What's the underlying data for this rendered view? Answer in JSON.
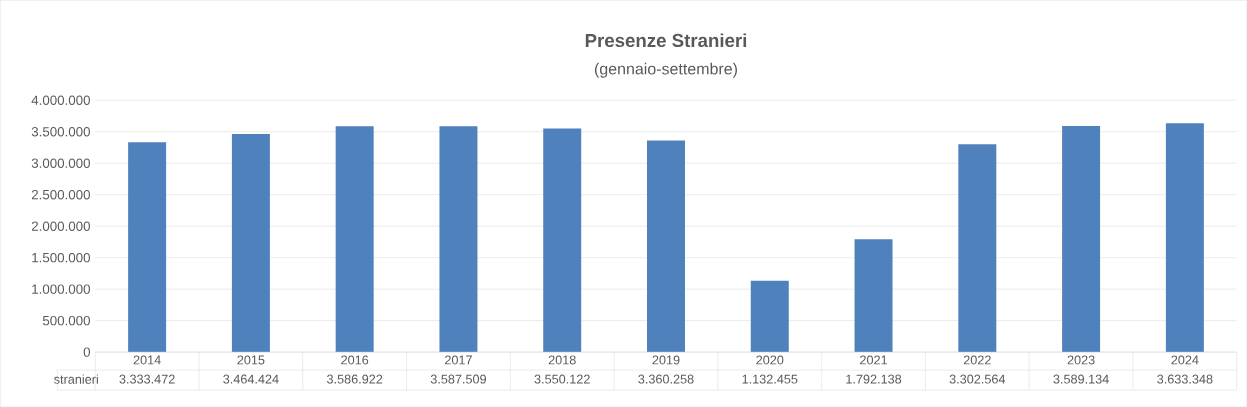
{
  "chart_data": {
    "type": "bar",
    "title": "Presenze Stranieri",
    "subtitle": "(gennaio-settembre)",
    "categories": [
      "2014",
      "2015",
      "2016",
      "2017",
      "2018",
      "2019",
      "2020",
      "2021",
      "2022",
      "2023",
      "2024"
    ],
    "series": [
      {
        "name": "stranieri",
        "color": "#4f81bd",
        "values": [
          3333472,
          3464424,
          3586922,
          3587509,
          3550122,
          3360258,
          1132455,
          1792138,
          3302564,
          3589134,
          3633348
        ],
        "value_labels": [
          "3.333.472",
          "3.464.424",
          "3.586.922",
          "3.587.509",
          "3.550.122",
          "3.360.258",
          "1.132.455",
          "1.792.138",
          "3.302.564",
          "3.589.134",
          "3.633.348"
        ]
      }
    ],
    "ylim": [
      0,
      4000000
    ],
    "yticks": [
      0,
      {
        "value": 500000,
        "label": "500.000"
      },
      {
        "value": 1000000,
        "label": "1.000.000"
      },
      {
        "value": 1500000,
        "label": "1.500.000"
      },
      {
        "value": 2000000,
        "label": "2.000.000"
      },
      {
        "value": 2500000,
        "label": "2.500.000"
      },
      {
        "value": 3000000,
        "label": "3.000.000"
      },
      {
        "value": 3500000,
        "label": "3.500.000"
      },
      {
        "value": 4000000,
        "label": "4.000.000"
      }
    ],
    "grid": "y"
  }
}
